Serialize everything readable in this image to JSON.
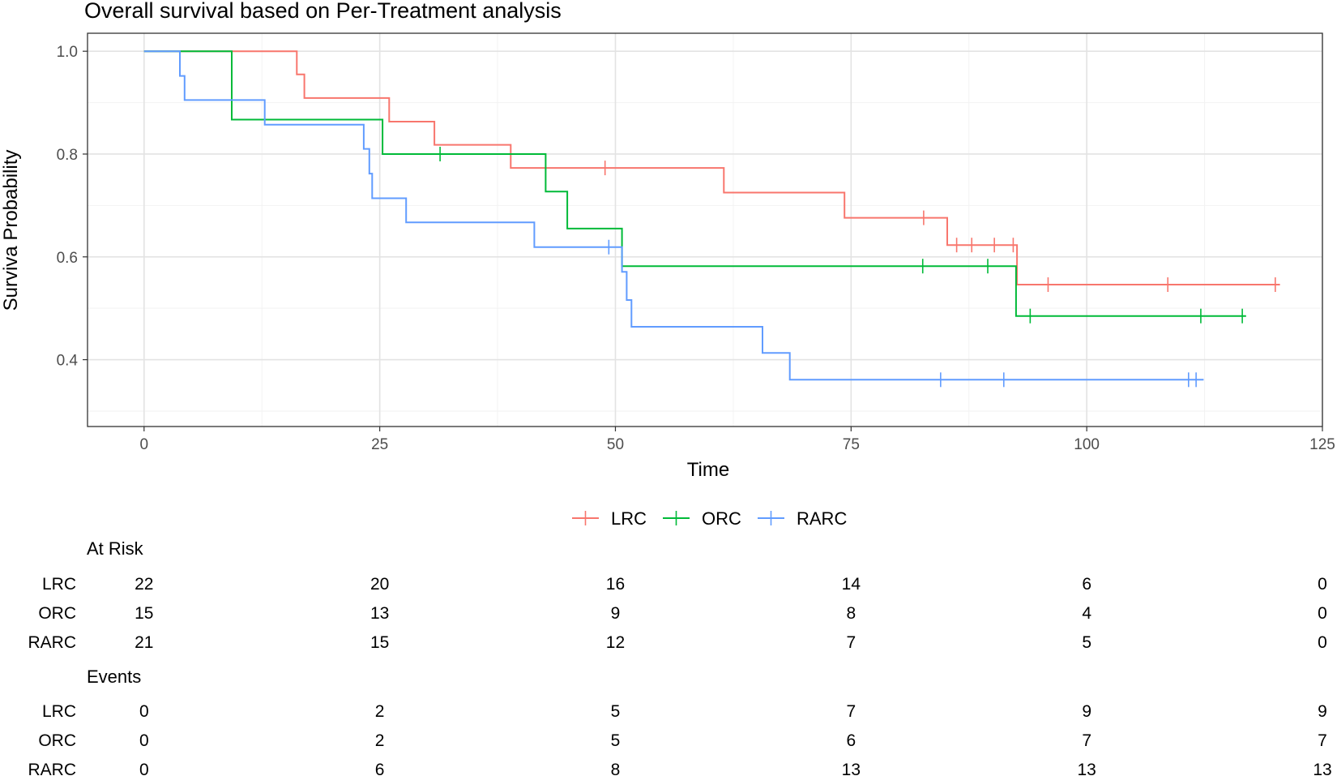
{
  "chart_data": {
    "type": "line",
    "title": "Overall survival based on Per-Treatment analysis",
    "xlabel": "Time",
    "ylabel": "Surviva Probability",
    "xlim": [
      -6,
      125
    ],
    "ylim": [
      0.27,
      1.035
    ],
    "x_ticks": [
      0,
      25,
      50,
      75,
      100,
      125
    ],
    "y_ticks": [
      0.4,
      0.6,
      0.8,
      1.0
    ],
    "y_tick_labels": [
      "0.4",
      "0.6",
      "0.8",
      "1.0"
    ],
    "grid": true,
    "legend_position": "bottom",
    "step": true,
    "series": [
      {
        "name": "LRC",
        "color": "#F8766D",
        "points": [
          [
            0,
            1.0
          ],
          [
            16.2,
            1.0
          ],
          [
            16.2,
            0.955
          ],
          [
            17.0,
            0.955
          ],
          [
            17.0,
            0.909
          ],
          [
            26.0,
            0.909
          ],
          [
            26.0,
            0.863
          ],
          [
            30.8,
            0.863
          ],
          [
            30.8,
            0.818
          ],
          [
            38.9,
            0.818
          ],
          [
            38.9,
            0.773
          ],
          [
            61.5,
            0.773
          ],
          [
            61.5,
            0.725
          ],
          [
            74.3,
            0.725
          ],
          [
            74.3,
            0.676
          ],
          [
            85.2,
            0.676
          ],
          [
            85.2,
            0.623
          ],
          [
            92.6,
            0.623
          ],
          [
            92.6,
            0.546
          ],
          [
            120.5,
            0.546
          ]
        ],
        "censored": [
          [
            48.9,
            0.773
          ],
          [
            82.7,
            0.676
          ],
          [
            86.2,
            0.623
          ],
          [
            87.8,
            0.623
          ],
          [
            90.2,
            0.623
          ],
          [
            92.2,
            0.623
          ],
          [
            95.9,
            0.546
          ],
          [
            108.6,
            0.546
          ],
          [
            120.0,
            0.546
          ]
        ]
      },
      {
        "name": "ORC",
        "color": "#00BA38",
        "points": [
          [
            0,
            1.0
          ],
          [
            9.3,
            1.0
          ],
          [
            9.3,
            0.867
          ],
          [
            25.3,
            0.867
          ],
          [
            25.3,
            0.8
          ],
          [
            42.6,
            0.8
          ],
          [
            42.6,
            0.727
          ],
          [
            44.9,
            0.727
          ],
          [
            44.9,
            0.655
          ],
          [
            50.7,
            0.655
          ],
          [
            50.7,
            0.582
          ],
          [
            92.5,
            0.582
          ],
          [
            92.5,
            0.485
          ],
          [
            116.9,
            0.485
          ]
        ],
        "censored": [
          [
            31.4,
            0.8
          ],
          [
            82.6,
            0.582
          ],
          [
            89.5,
            0.582
          ],
          [
            94.0,
            0.485
          ],
          [
            112.1,
            0.485
          ],
          [
            116.5,
            0.485
          ]
        ]
      },
      {
        "name": "RARC",
        "color": "#619CFF",
        "points": [
          [
            0,
            1.0
          ],
          [
            3.8,
            1.0
          ],
          [
            3.8,
            0.952
          ],
          [
            4.3,
            0.952
          ],
          [
            4.3,
            0.905
          ],
          [
            12.8,
            0.905
          ],
          [
            12.8,
            0.857
          ],
          [
            23.3,
            0.857
          ],
          [
            23.3,
            0.81
          ],
          [
            23.9,
            0.81
          ],
          [
            23.9,
            0.762
          ],
          [
            24.2,
            0.762
          ],
          [
            24.2,
            0.714
          ],
          [
            27.8,
            0.714
          ],
          [
            27.8,
            0.667
          ],
          [
            41.4,
            0.667
          ],
          [
            41.4,
            0.619
          ],
          [
            50.7,
            0.619
          ],
          [
            50.7,
            0.571
          ],
          [
            51.2,
            0.571
          ],
          [
            51.2,
            0.516
          ],
          [
            51.7,
            0.516
          ],
          [
            51.7,
            0.464
          ],
          [
            65.6,
            0.464
          ],
          [
            65.6,
            0.413
          ],
          [
            68.5,
            0.413
          ],
          [
            68.5,
            0.361
          ],
          [
            112.4,
            0.361
          ]
        ],
        "censored": [
          [
            49.3,
            0.619
          ],
          [
            84.5,
            0.361
          ],
          [
            91.2,
            0.361
          ],
          [
            110.8,
            0.361
          ],
          [
            111.6,
            0.361
          ]
        ]
      }
    ],
    "risk_table": {
      "title": "At Risk",
      "time_points": [
        0,
        25,
        50,
        75,
        100,
        125
      ],
      "rows": [
        {
          "name": "LRC",
          "values": [
            "22",
            "20",
            "16",
            "14",
            "6",
            "0"
          ]
        },
        {
          "name": "ORC",
          "values": [
            "15",
            "13",
            "9",
            "8",
            "4",
            "0"
          ]
        },
        {
          "name": "RARC",
          "values": [
            "21",
            "15",
            "12",
            "7",
            "5",
            "0"
          ]
        }
      ]
    },
    "events_table": {
      "title": "Events",
      "time_points": [
        0,
        25,
        50,
        75,
        100,
        125
      ],
      "rows": [
        {
          "name": "LRC",
          "values": [
            "0",
            "2",
            "5",
            "7",
            "9",
            "9"
          ]
        },
        {
          "name": "ORC",
          "values": [
            "0",
            "2",
            "5",
            "6",
            "7",
            "7"
          ]
        },
        {
          "name": "RARC",
          "values": [
            "0",
            "6",
            "8",
            "13",
            "13",
            "13"
          ]
        }
      ]
    }
  }
}
